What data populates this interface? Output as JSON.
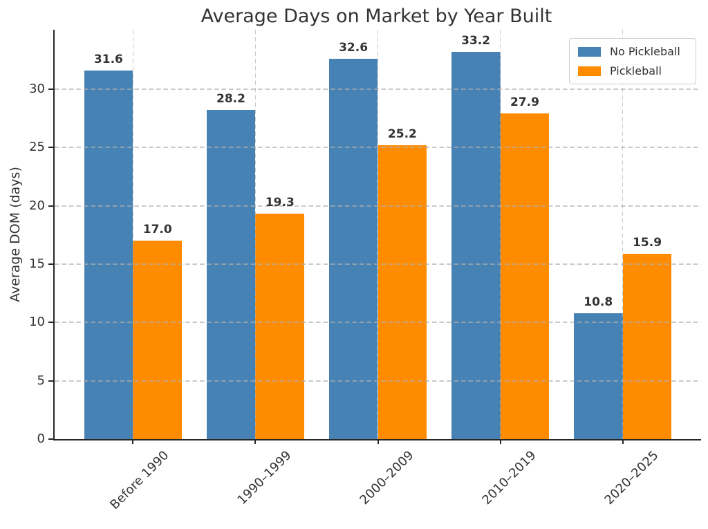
{
  "title": "Average Days on Market by Year Built",
  "chart_data": {
    "type": "bar",
    "title": "Average Days on Market by Year Built",
    "categories": [
      "Before 1990",
      "1990–1999",
      "2000–2009",
      "2010–2019",
      "2020–2025"
    ],
    "series": [
      {
        "name": "No Pickleball",
        "color": "#4682b4",
        "values": [
          31.6,
          28.2,
          32.6,
          33.2,
          10.8
        ]
      },
      {
        "name": "Pickleball",
        "color": "#ff8c00",
        "values": [
          17.0,
          19.3,
          25.2,
          27.9,
          15.9
        ]
      }
    ],
    "xlabel": "",
    "ylabel": "Average DOM (days)",
    "ylim": [
      0,
      35.1
    ],
    "yticks": [
      0,
      5,
      10,
      15,
      20,
      25,
      30
    ],
    "grid": true,
    "grid_style": "dashed",
    "legend_position": "upper right",
    "value_labels_decimals": 1
  }
}
